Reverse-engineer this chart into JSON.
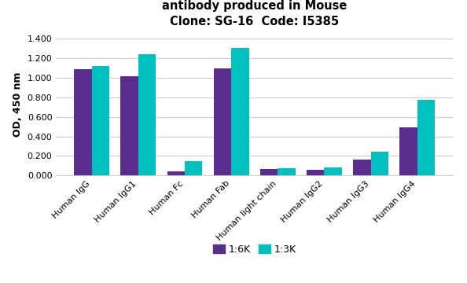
{
  "title_line2": "antibody produced in Mouse",
  "title_line3": "Clone: SG-16  Code: I5385",
  "categories": [
    "Human IgG",
    "Human IgG1",
    "Human Fc",
    "Human Fab",
    "Human light chain",
    "Human IgG2",
    "Human IgG3",
    "Human IgG4"
  ],
  "values_6K": [
    1.09,
    1.02,
    0.045,
    1.095,
    0.07,
    0.058,
    0.16,
    0.495
  ],
  "values_3K": [
    1.12,
    1.24,
    0.15,
    1.305,
    0.078,
    0.08,
    0.242,
    0.775
  ],
  "color_6K": "#5b2d8e",
  "color_3K": "#00c0c0",
  "ylabel": "OD, 450 nm",
  "ylim": [
    0.0,
    1.45
  ],
  "yticks": [
    0.0,
    0.2,
    0.4,
    0.6,
    0.8,
    1.0,
    1.2,
    1.4
  ],
  "legend_6K": "1:6K",
  "legend_3K": "1:3K",
  "background_color": "#ffffff",
  "grid_color": "#cccccc",
  "title_fontsize": 10.5,
  "axis_label_fontsize": 9,
  "tick_fontsize": 8,
  "legend_fontsize": 9,
  "bar_width": 0.38
}
